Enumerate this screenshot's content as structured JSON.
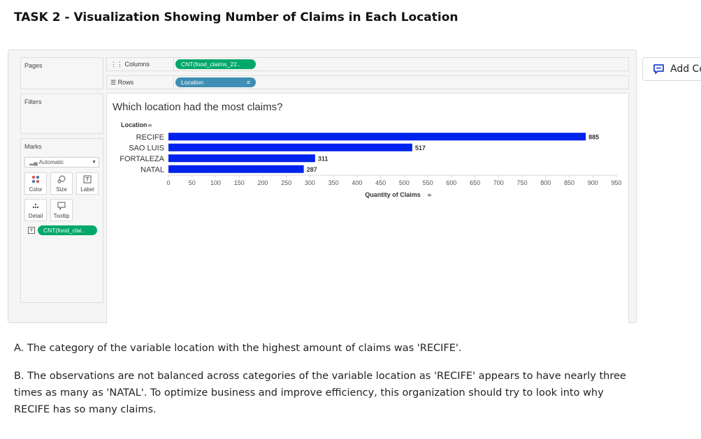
{
  "page": {
    "title": "TASK 2 - Visualization Showing Number of Claims in Each Location",
    "answer_a": "A. The category of the variable location with the highest amount of claims was 'RECIFE'.",
    "answer_b": "B. The observations are not balanced across categories of the variable location as 'RECIFE' appears to have nearly three times as many as 'NATAL'. To optimize business and improve efficiency, this organization should try to look into why RECIFE has so many claims."
  },
  "side_button": {
    "label": "Add Co"
  },
  "tableau": {
    "pages_label": "Pages",
    "filters_label": "Filters",
    "marks_label": "Marks",
    "marks_type": "Automatic",
    "mark_buttons": {
      "color": "Color",
      "size": "Size",
      "label": "Label",
      "detail": "Detail",
      "tooltip": "Tooltip"
    },
    "marks_pill": "CNT(food_clai..",
    "columns_label": "Columns",
    "columns_pill": "CNT(food_claims_22..",
    "rows_label": "Rows",
    "rows_pill": "Location",
    "colors": {
      "bar": "#0022ee",
      "pill_green": "#00a86b",
      "pill_blue": "#3e8fb3"
    }
  },
  "chart_data": {
    "type": "bar",
    "orientation": "horizontal",
    "title": "Which location had the most claims?",
    "categories": [
      "RECIFE",
      "SAO LUIS",
      "FORTALEZA",
      "NATAL"
    ],
    "values": [
      885,
      517,
      311,
      287
    ],
    "data_labels": [
      "885",
      "517",
      "311",
      "287"
    ],
    "ylabel": "Location",
    "xlabel": "Quantity of Claims",
    "xlim": [
      0,
      950
    ],
    "x_ticks": [
      "0",
      "50",
      "100",
      "150",
      "200",
      "250",
      "300",
      "350",
      "400",
      "450",
      "500",
      "550",
      "600",
      "650",
      "700",
      "750",
      "800",
      "850",
      "900",
      "950"
    ],
    "grid": false
  }
}
